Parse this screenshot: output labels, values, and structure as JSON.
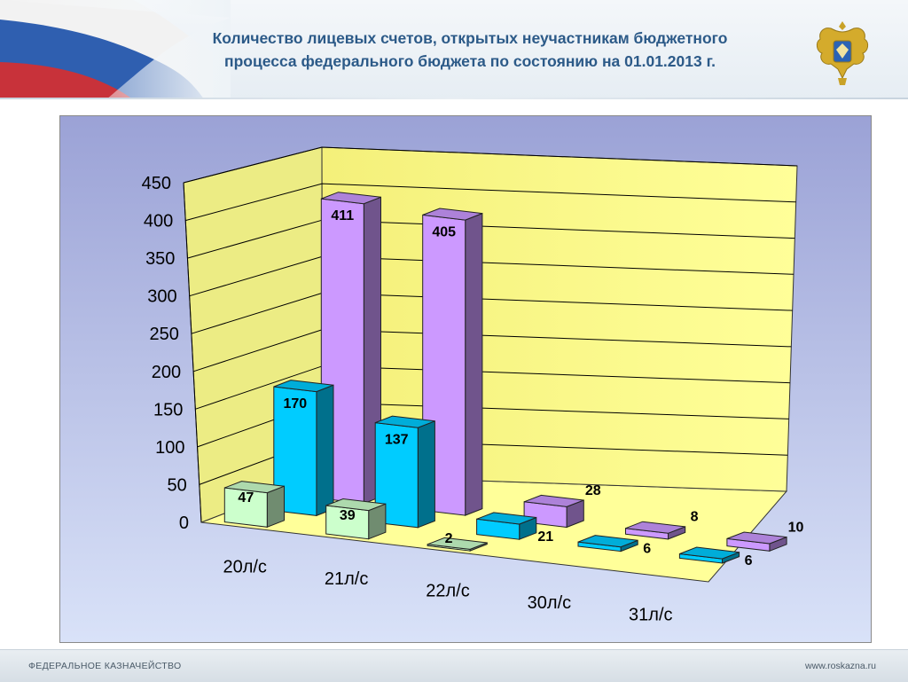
{
  "header": {
    "title_line1": "Количество лицевых счетов, открытых неучастникам бюджетного",
    "title_line2": "процесса федерального бюджета по состоянию на 01.01.2013 г."
  },
  "footer": {
    "left": "ФЕДЕРАЛЬНОЕ КАЗНАЧЕЙСТВО",
    "right": "www.roskazna.ru"
  },
  "colors": {
    "plot_bg_top": "#9ba2d6",
    "plot_bg_bottom": "#d9e2f8",
    "wall": "#ffff99",
    "floor": "#ffff99",
    "series_front": "#ccffcc",
    "series_middle": "#00ccff",
    "series_back": "#cc99ff"
  },
  "chart_data": {
    "type": "bar",
    "categories": [
      "20л/с",
      "21л/с",
      "22л/с",
      "30л/с",
      "31л/с"
    ],
    "series": [
      {
        "values": [
          411,
          405,
          28,
          8,
          10
        ]
      },
      {
        "values": [
          170,
          137,
          21,
          6,
          6
        ]
      },
      {
        "values": [
          47,
          39,
          2,
          0,
          0
        ]
      }
    ],
    "ylim": [
      0,
      450
    ],
    "yticks": [
      "0",
      "50",
      "100",
      "150",
      "200",
      "250",
      "300",
      "350",
      "400",
      "450"
    ],
    "grid": true,
    "projection": "3d-clustered"
  }
}
